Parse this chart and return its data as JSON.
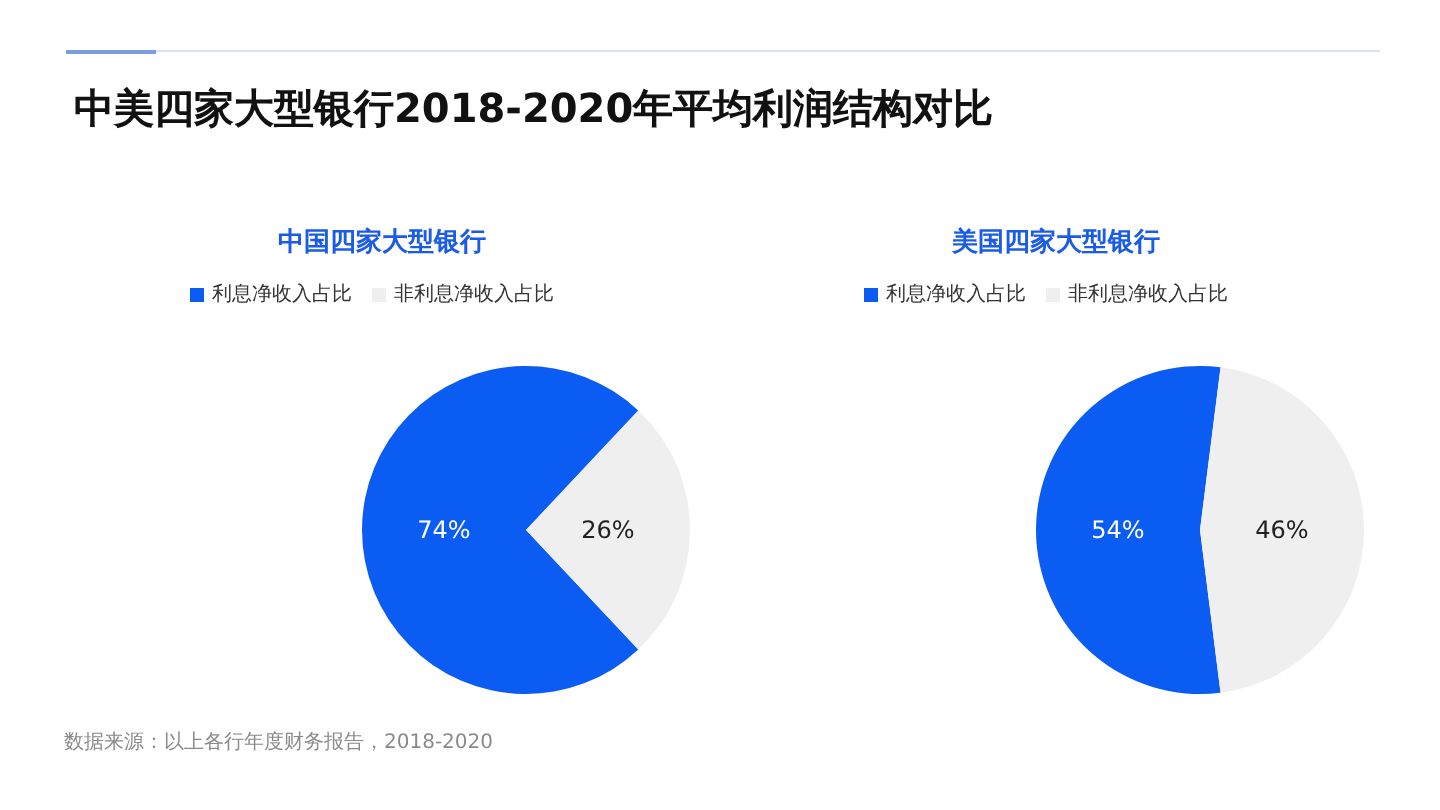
{
  "chart_data": [
    {
      "type": "pie",
      "title": "中美四家大型银行2018-2020年平均利润结构对比",
      "subtitle": "中国四家大型银行",
      "categories": [
        "利息净收入占比",
        "非利息净收入占比"
      ],
      "values": [
        74,
        26
      ],
      "colors": [
        "#0b5cf2",
        "#efefef"
      ],
      "value_labels": [
        "74%",
        "26%"
      ],
      "legend": "top",
      "annotations": [
        "数据来源：以上各行年度财务报告，2018-2020"
      ]
    },
    {
      "type": "pie",
      "subtitle": "美国四家大型银行",
      "categories": [
        "利息净收入占比",
        "非利息净收入占比"
      ],
      "values": [
        54,
        46
      ],
      "colors": [
        "#0b5cf2",
        "#efefef"
      ],
      "value_labels": [
        "54%",
        "46%"
      ],
      "legend": "top"
    }
  ]
}
